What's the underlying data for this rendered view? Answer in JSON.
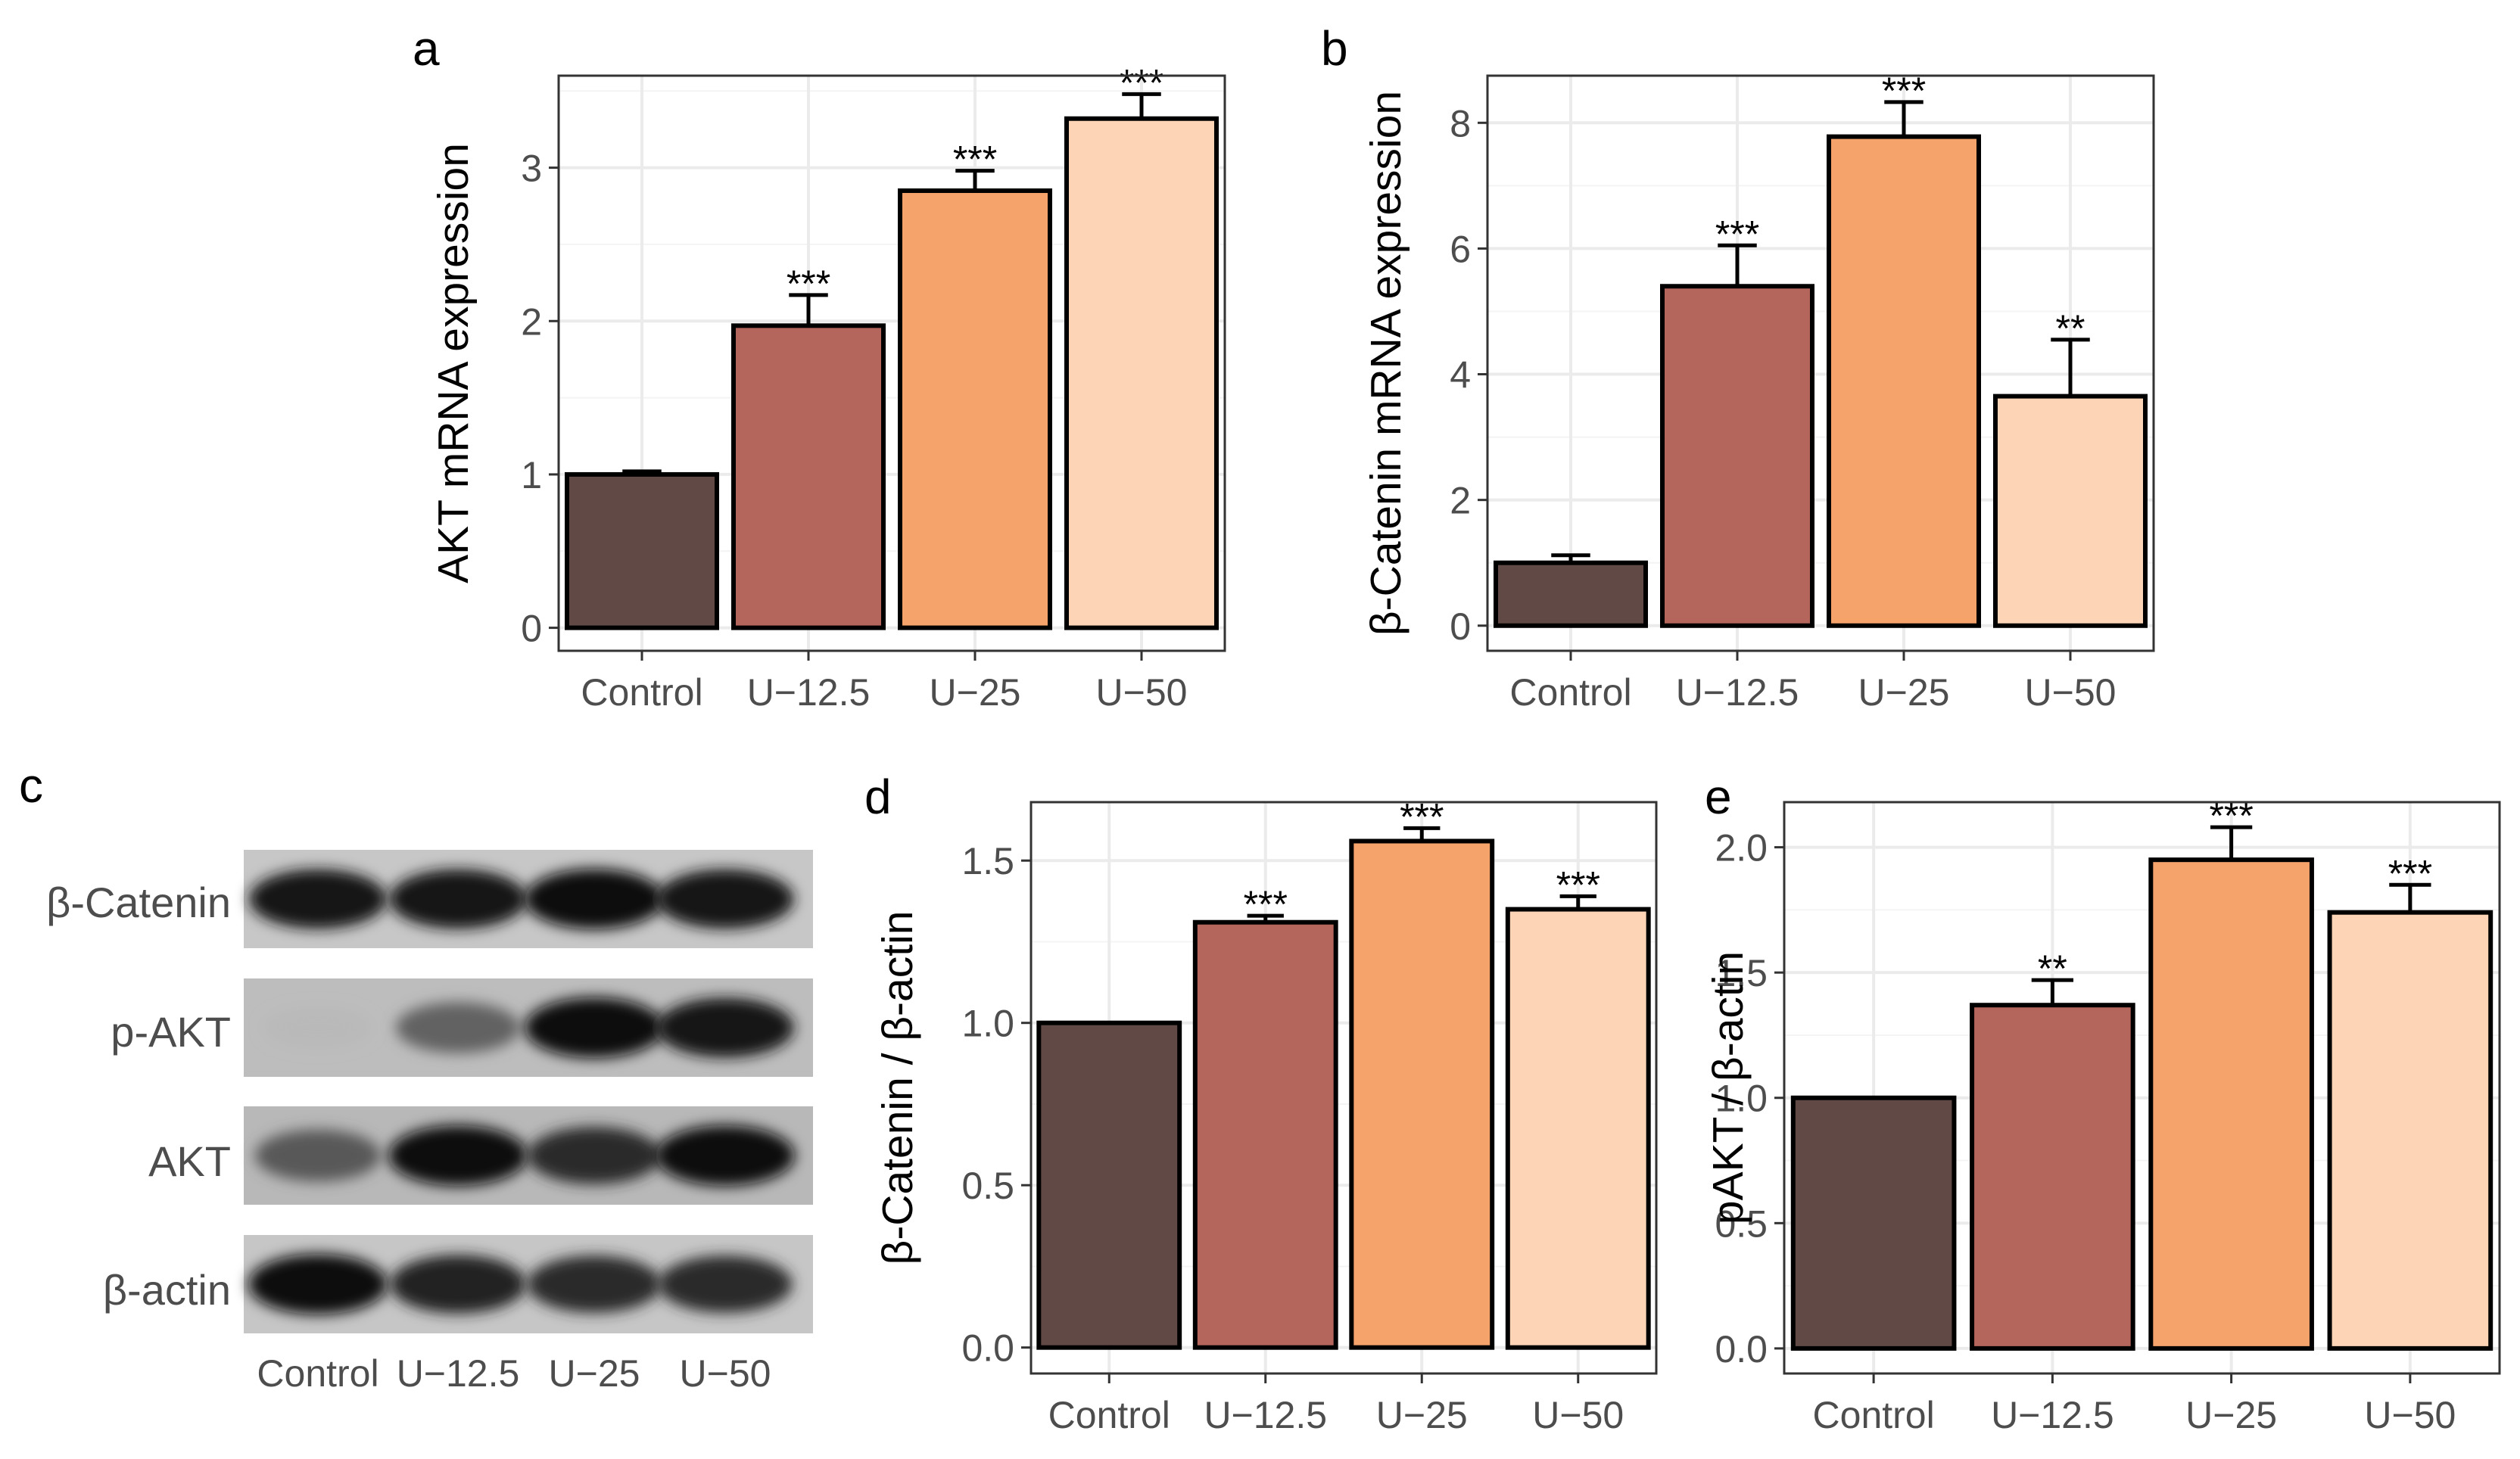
{
  "colors": [
    "#614a45",
    "#b5665c",
    "#f5a36b",
    "#fdd5b6"
  ],
  "chart_data": [
    {
      "panel": "a",
      "type": "bar",
      "categories": [
        "Control",
        "U−12.5",
        "U−25",
        "U−50"
      ],
      "values": [
        1.0,
        1.97,
        2.85,
        3.32
      ],
      "errors": [
        0.02,
        0.2,
        0.13,
        0.16
      ],
      "significance": [
        "",
        "***",
        "***",
        "***"
      ],
      "ylabel": "AKT mRNA expression",
      "ylim": [
        -0.15,
        3.6
      ],
      "yticks": [
        0,
        1,
        2,
        3
      ],
      "ytick_labels": [
        "0",
        "1",
        "2",
        "3"
      ],
      "grid": true
    },
    {
      "panel": "b",
      "type": "bar",
      "categories": [
        "Control",
        "U−12.5",
        "U−25",
        "U−50"
      ],
      "values": [
        1.0,
        5.4,
        7.78,
        3.65
      ],
      "errors": [
        0.12,
        0.65,
        0.55,
        0.9
      ],
      "significance": [
        "",
        "***",
        "***",
        "**"
      ],
      "ylabel": "β-Catenin mRNA expression",
      "ylim": [
        -0.4,
        8.75
      ],
      "yticks": [
        0,
        2,
        4,
        6,
        8
      ],
      "ytick_labels": [
        "0",
        "2",
        "4",
        "6",
        "8"
      ],
      "grid": true
    },
    {
      "panel": "d",
      "type": "bar",
      "categories": [
        "Control",
        "U−12.5",
        "U−25",
        "U−50"
      ],
      "values": [
        1.0,
        1.31,
        1.56,
        1.35
      ],
      "errors": [
        0.0,
        0.02,
        0.04,
        0.04
      ],
      "significance": [
        "",
        "***",
        "***",
        "***"
      ],
      "ylabel": "β-Catenin / β-actin",
      "ylim": [
        -0.08,
        1.68
      ],
      "yticks": [
        0,
        0.5,
        1.0,
        1.5
      ],
      "ytick_labels": [
        "0.0",
        "0.5",
        "1.0",
        "1.5"
      ],
      "grid": true
    },
    {
      "panel": "e",
      "type": "bar",
      "categories": [
        "Control",
        "U−12.5",
        "U−25",
        "U−50"
      ],
      "values": [
        1.0,
        1.37,
        1.95,
        1.74
      ],
      "errors": [
        0.0,
        0.1,
        0.13,
        0.11
      ],
      "significance": [
        "",
        "**",
        "***",
        "***"
      ],
      "ylabel": "pAKT / β-actin",
      "ylim": [
        -0.1,
        2.18
      ],
      "yticks": [
        0,
        0.5,
        1.0,
        1.5,
        2.0
      ],
      "ytick_labels": [
        "0.0",
        "0.5",
        "1.0",
        "1.5",
        "2.0"
      ],
      "grid": true
    }
  ],
  "western_blot": {
    "panel": "c",
    "rows": [
      "β-Catenin",
      "p-AKT",
      "AKT",
      "β-actin"
    ],
    "lanes": [
      "Control",
      "U−12.5",
      "U−25",
      "U−50"
    ],
    "band_intensity": [
      [
        0.95,
        0.95,
        1.0,
        0.95
      ],
      [
        0.08,
        0.55,
        1.0,
        0.95
      ],
      [
        0.6,
        1.0,
        0.85,
        1.0
      ],
      [
        1.0,
        0.9,
        0.85,
        0.85
      ]
    ]
  }
}
